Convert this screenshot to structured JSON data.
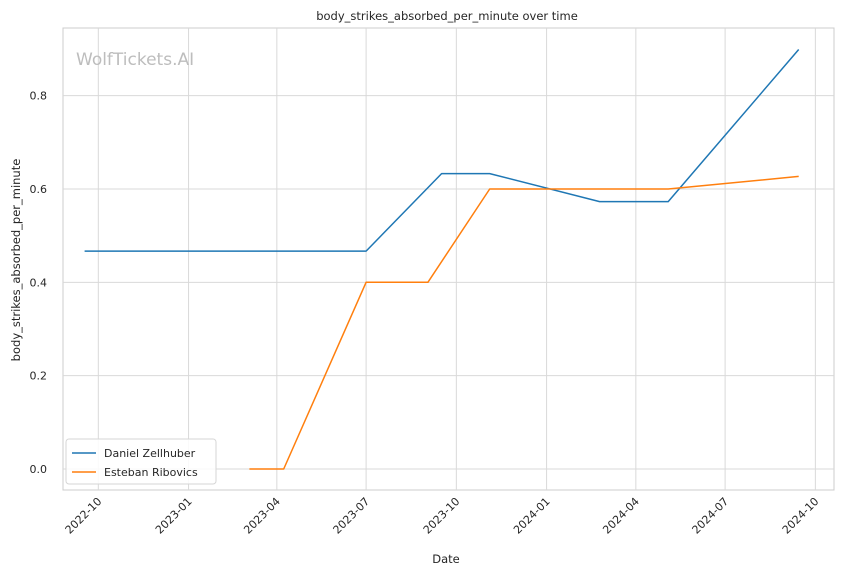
{
  "chart_data": {
    "type": "line",
    "title": "body_strikes_absorbed_per_minute over time",
    "xlabel": "Date",
    "ylabel": "body_strikes_absorbed_per_minute",
    "watermark": "WolfTickets.AI",
    "x_ticks": [
      "2022-10",
      "2023-01",
      "2023-04",
      "2023-07",
      "2023-10",
      "2024-01",
      "2024-04",
      "2024-07",
      "2024-10"
    ],
    "y_ticks": [
      "0.0",
      "0.2",
      "0.4",
      "0.6",
      "0.8"
    ],
    "xlim": [
      "2022-08-26",
      "2024-10-20"
    ],
    "ylim": [
      -0.045,
      0.945
    ],
    "grid": true,
    "legend_position": "lower-left",
    "series": [
      {
        "name": "Daniel Zellhuber",
        "color": "#1f77b4",
        "points": [
          [
            "2022-09-17",
            0.467
          ],
          [
            "2023-07-01",
            0.467
          ],
          [
            "2023-09-16",
            0.633
          ],
          [
            "2023-11-04",
            0.633
          ],
          [
            "2024-02-24",
            0.573
          ],
          [
            "2024-05-04",
            0.573
          ],
          [
            "2024-09-14",
            0.899
          ]
        ]
      },
      {
        "name": "Esteban Ribovics",
        "color": "#ff7f0e",
        "points": [
          [
            "2023-03-04",
            0.0
          ],
          [
            "2023-04-08",
            0.0
          ],
          [
            "2023-07-01",
            0.4
          ],
          [
            "2023-09-02",
            0.4
          ],
          [
            "2023-11-04",
            0.6
          ],
          [
            "2024-05-04",
            0.6
          ],
          [
            "2024-09-14",
            0.627
          ]
        ]
      }
    ]
  }
}
